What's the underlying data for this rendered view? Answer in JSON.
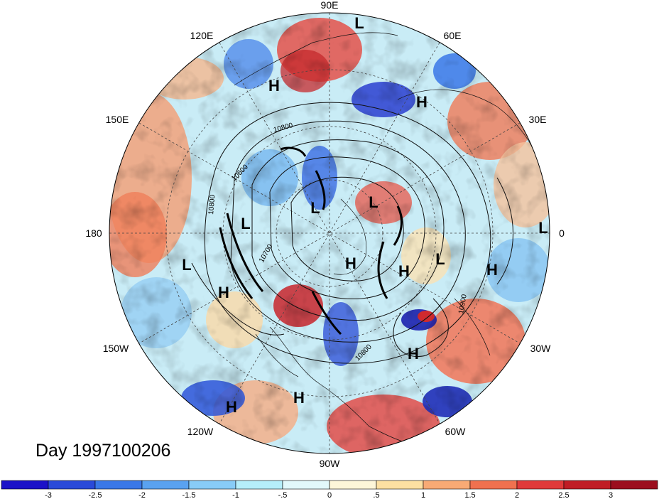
{
  "title": "Day 1997100206",
  "lon_labels": [
    "90E",
    "60E",
    "30E",
    "0",
    "30W",
    "60W",
    "90W",
    "120W",
    "150W",
    "180",
    "150E",
    "120E"
  ],
  "pressure_centers": [
    "L",
    "H",
    "H",
    "L",
    "L",
    "L",
    "L",
    "L",
    "H",
    "H",
    "L",
    "H",
    "H",
    "H",
    "H",
    "H"
  ],
  "contour_labels": [
    "10800",
    "10600",
    "10800",
    "10700",
    "10900",
    "10800"
  ],
  "colorbar": {
    "ticks": [
      "-3",
      "-2.5",
      "-2",
      "-1.5",
      "-1",
      "-.5",
      "0",
      ".5",
      "1",
      "1.5",
      "2",
      "2.5",
      "3"
    ],
    "colors": [
      "#1b12c8",
      "#2a4ad9",
      "#3a78e8",
      "#5aa2f0",
      "#88ccf7",
      "#b5eefa",
      "#e2f8fb",
      "#fdf6d9",
      "#fde0a2",
      "#f8aa75",
      "#f0714f",
      "#e03a3a",
      "#c01d25",
      "#9c0f1f"
    ]
  },
  "colors": {
    "land_outline": "#111111",
    "grid": "#444444"
  }
}
